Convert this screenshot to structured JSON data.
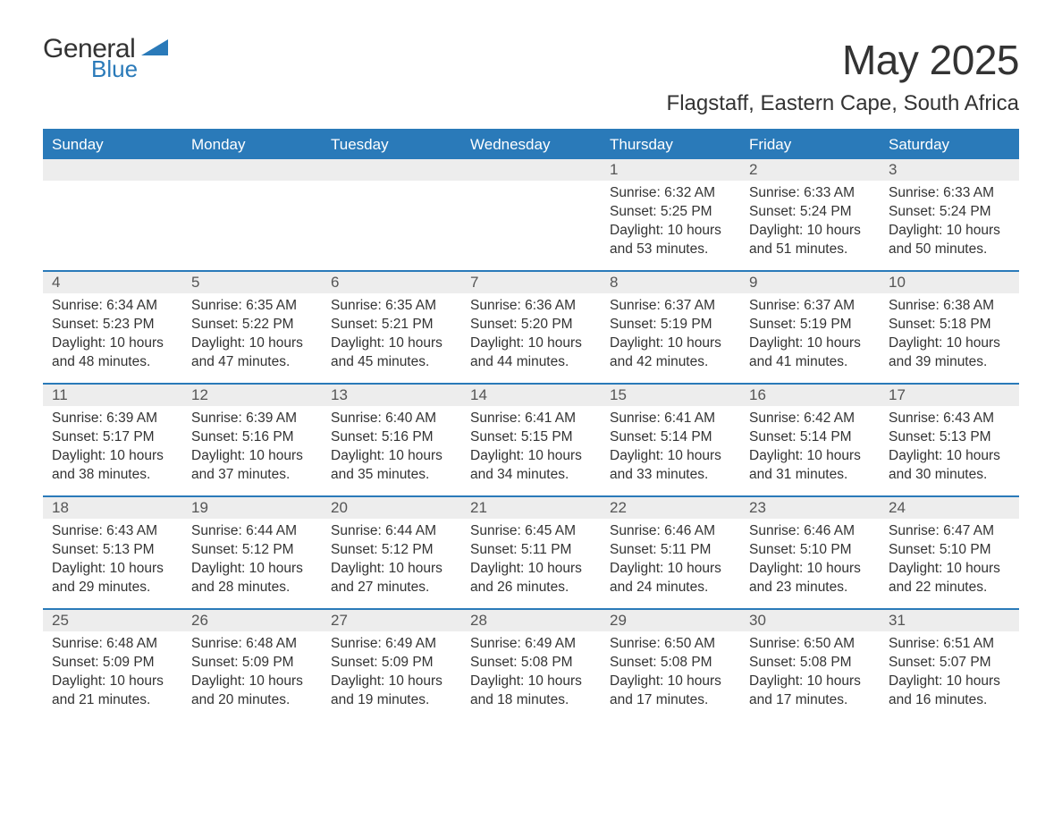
{
  "brand": {
    "word1": "General",
    "word2": "Blue",
    "shape_color": "#2a7ab9"
  },
  "title": "May 2025",
  "subtitle": "Flagstaff, Eastern Cape, South Africa",
  "theme": {
    "header_bg": "#2a7ab9",
    "header_text": "#ffffff",
    "rule_color": "#2a7ab9",
    "daynum_bg": "#ededed",
    "body_text": "#333333",
    "page_bg": "#ffffff"
  },
  "columns": [
    "Sunday",
    "Monday",
    "Tuesday",
    "Wednesday",
    "Thursday",
    "Friday",
    "Saturday"
  ],
  "weeks": [
    [
      null,
      null,
      null,
      null,
      {
        "n": "1",
        "sunrise": "6:32 AM",
        "sunset": "5:25 PM",
        "daylight": "10 hours and 53 minutes."
      },
      {
        "n": "2",
        "sunrise": "6:33 AM",
        "sunset": "5:24 PM",
        "daylight": "10 hours and 51 minutes."
      },
      {
        "n": "3",
        "sunrise": "6:33 AM",
        "sunset": "5:24 PM",
        "daylight": "10 hours and 50 minutes."
      }
    ],
    [
      {
        "n": "4",
        "sunrise": "6:34 AM",
        "sunset": "5:23 PM",
        "daylight": "10 hours and 48 minutes."
      },
      {
        "n": "5",
        "sunrise": "6:35 AM",
        "sunset": "5:22 PM",
        "daylight": "10 hours and 47 minutes."
      },
      {
        "n": "6",
        "sunrise": "6:35 AM",
        "sunset": "5:21 PM",
        "daylight": "10 hours and 45 minutes."
      },
      {
        "n": "7",
        "sunrise": "6:36 AM",
        "sunset": "5:20 PM",
        "daylight": "10 hours and 44 minutes."
      },
      {
        "n": "8",
        "sunrise": "6:37 AM",
        "sunset": "5:19 PM",
        "daylight": "10 hours and 42 minutes."
      },
      {
        "n": "9",
        "sunrise": "6:37 AM",
        "sunset": "5:19 PM",
        "daylight": "10 hours and 41 minutes."
      },
      {
        "n": "10",
        "sunrise": "6:38 AM",
        "sunset": "5:18 PM",
        "daylight": "10 hours and 39 minutes."
      }
    ],
    [
      {
        "n": "11",
        "sunrise": "6:39 AM",
        "sunset": "5:17 PM",
        "daylight": "10 hours and 38 minutes."
      },
      {
        "n": "12",
        "sunrise": "6:39 AM",
        "sunset": "5:16 PM",
        "daylight": "10 hours and 37 minutes."
      },
      {
        "n": "13",
        "sunrise": "6:40 AM",
        "sunset": "5:16 PM",
        "daylight": "10 hours and 35 minutes."
      },
      {
        "n": "14",
        "sunrise": "6:41 AM",
        "sunset": "5:15 PM",
        "daylight": "10 hours and 34 minutes."
      },
      {
        "n": "15",
        "sunrise": "6:41 AM",
        "sunset": "5:14 PM",
        "daylight": "10 hours and 33 minutes."
      },
      {
        "n": "16",
        "sunrise": "6:42 AM",
        "sunset": "5:14 PM",
        "daylight": "10 hours and 31 minutes."
      },
      {
        "n": "17",
        "sunrise": "6:43 AM",
        "sunset": "5:13 PM",
        "daylight": "10 hours and 30 minutes."
      }
    ],
    [
      {
        "n": "18",
        "sunrise": "6:43 AM",
        "sunset": "5:13 PM",
        "daylight": "10 hours and 29 minutes."
      },
      {
        "n": "19",
        "sunrise": "6:44 AM",
        "sunset": "5:12 PM",
        "daylight": "10 hours and 28 minutes."
      },
      {
        "n": "20",
        "sunrise": "6:44 AM",
        "sunset": "5:12 PM",
        "daylight": "10 hours and 27 minutes."
      },
      {
        "n": "21",
        "sunrise": "6:45 AM",
        "sunset": "5:11 PM",
        "daylight": "10 hours and 26 minutes."
      },
      {
        "n": "22",
        "sunrise": "6:46 AM",
        "sunset": "5:11 PM",
        "daylight": "10 hours and 24 minutes."
      },
      {
        "n": "23",
        "sunrise": "6:46 AM",
        "sunset": "5:10 PM",
        "daylight": "10 hours and 23 minutes."
      },
      {
        "n": "24",
        "sunrise": "6:47 AM",
        "sunset": "5:10 PM",
        "daylight": "10 hours and 22 minutes."
      }
    ],
    [
      {
        "n": "25",
        "sunrise": "6:48 AM",
        "sunset": "5:09 PM",
        "daylight": "10 hours and 21 minutes."
      },
      {
        "n": "26",
        "sunrise": "6:48 AM",
        "sunset": "5:09 PM",
        "daylight": "10 hours and 20 minutes."
      },
      {
        "n": "27",
        "sunrise": "6:49 AM",
        "sunset": "5:09 PM",
        "daylight": "10 hours and 19 minutes."
      },
      {
        "n": "28",
        "sunrise": "6:49 AM",
        "sunset": "5:08 PM",
        "daylight": "10 hours and 18 minutes."
      },
      {
        "n": "29",
        "sunrise": "6:50 AM",
        "sunset": "5:08 PM",
        "daylight": "10 hours and 17 minutes."
      },
      {
        "n": "30",
        "sunrise": "6:50 AM",
        "sunset": "5:08 PM",
        "daylight": "10 hours and 17 minutes."
      },
      {
        "n": "31",
        "sunrise": "6:51 AM",
        "sunset": "5:07 PM",
        "daylight": "10 hours and 16 minutes."
      }
    ]
  ],
  "labels": {
    "sunrise": "Sunrise: ",
    "sunset": "Sunset: ",
    "daylight": "Daylight: "
  }
}
